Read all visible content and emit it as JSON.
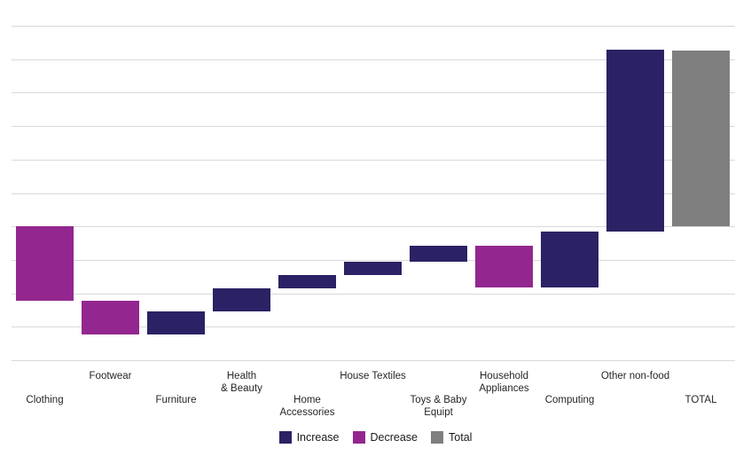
{
  "chart_data": {
    "type": "waterfall",
    "title": "",
    "xlabel": "",
    "ylabel": "",
    "y_axis_unlabeled": true,
    "ylim": [
      -4,
      6
    ],
    "gridline_step": 1,
    "grid": true,
    "legend_position": "bottom-center",
    "categories": [
      "Clothing",
      "Footwear",
      "Furniture",
      "Health & Beauty",
      "Home Accessories",
      "House Textiles",
      "Toys & Baby Equipt",
      "Household Appliances",
      "Computing",
      "Other non-food",
      "TOTAL"
    ],
    "bars": [
      {
        "category": "Clothing",
        "lines": [
          "Clothing"
        ],
        "row": "bottom",
        "kind": "decrease",
        "from": 0,
        "to": -2.22,
        "change": -2.22
      },
      {
        "category": "Footwear",
        "lines": [
          "Footwear"
        ],
        "row": "top",
        "kind": "decrease",
        "from": -2.22,
        "to": -3.22,
        "change": -1.0
      },
      {
        "category": "Furniture",
        "lines": [
          "Furniture"
        ],
        "row": "bottom",
        "kind": "increase",
        "from": -3.22,
        "to": -2.55,
        "change": 0.67
      },
      {
        "category": "Health & Beauty",
        "lines": [
          "Health",
          "& Beauty"
        ],
        "row": "top",
        "kind": "increase",
        "from": -2.55,
        "to": -1.85,
        "change": 0.7
      },
      {
        "category": "Home Accessories",
        "lines": [
          "Home",
          "Accessories"
        ],
        "row": "bottom",
        "kind": "increase",
        "from": -1.85,
        "to": -1.46,
        "change": 0.39
      },
      {
        "category": "House Textiles",
        "lines": [
          "House Textiles"
        ],
        "row": "top",
        "kind": "increase",
        "from": -1.46,
        "to": -1.06,
        "change": 0.4
      },
      {
        "category": "Toys & Baby Equipt",
        "lines": [
          "Toys & Baby",
          "Equipt"
        ],
        "row": "bottom",
        "kind": "increase",
        "from": -1.06,
        "to": -0.59,
        "change": 0.47
      },
      {
        "category": "Household Appliances",
        "lines": [
          "Household",
          "Appliances"
        ],
        "row": "top",
        "kind": "decrease",
        "from": -0.59,
        "to": -1.83,
        "change": -1.24
      },
      {
        "category": "Computing",
        "lines": [
          "Computing"
        ],
        "row": "bottom",
        "kind": "increase",
        "from": -1.83,
        "to": -0.15,
        "change": 1.68
      },
      {
        "category": "Other non-food",
        "lines": [
          "Other non-food"
        ],
        "row": "top",
        "kind": "increase",
        "from": -0.15,
        "to": 5.28,
        "change": 5.43
      },
      {
        "category": "TOTAL",
        "lines": [
          "TOTAL"
        ],
        "row": "bottom",
        "kind": "total",
        "from": 0,
        "to": 5.27,
        "change": 5.27
      }
    ],
    "legend": [
      {
        "label": "Increase",
        "kind": "increase"
      },
      {
        "label": "Decrease",
        "kind": "decrease"
      },
      {
        "label": "Total",
        "kind": "total"
      }
    ],
    "colors": {
      "increase": "#2a2264",
      "decrease": "#93278f",
      "total": "#7f7f7f",
      "gridline": "#d9d9d9",
      "label_text": "#262626"
    }
  }
}
